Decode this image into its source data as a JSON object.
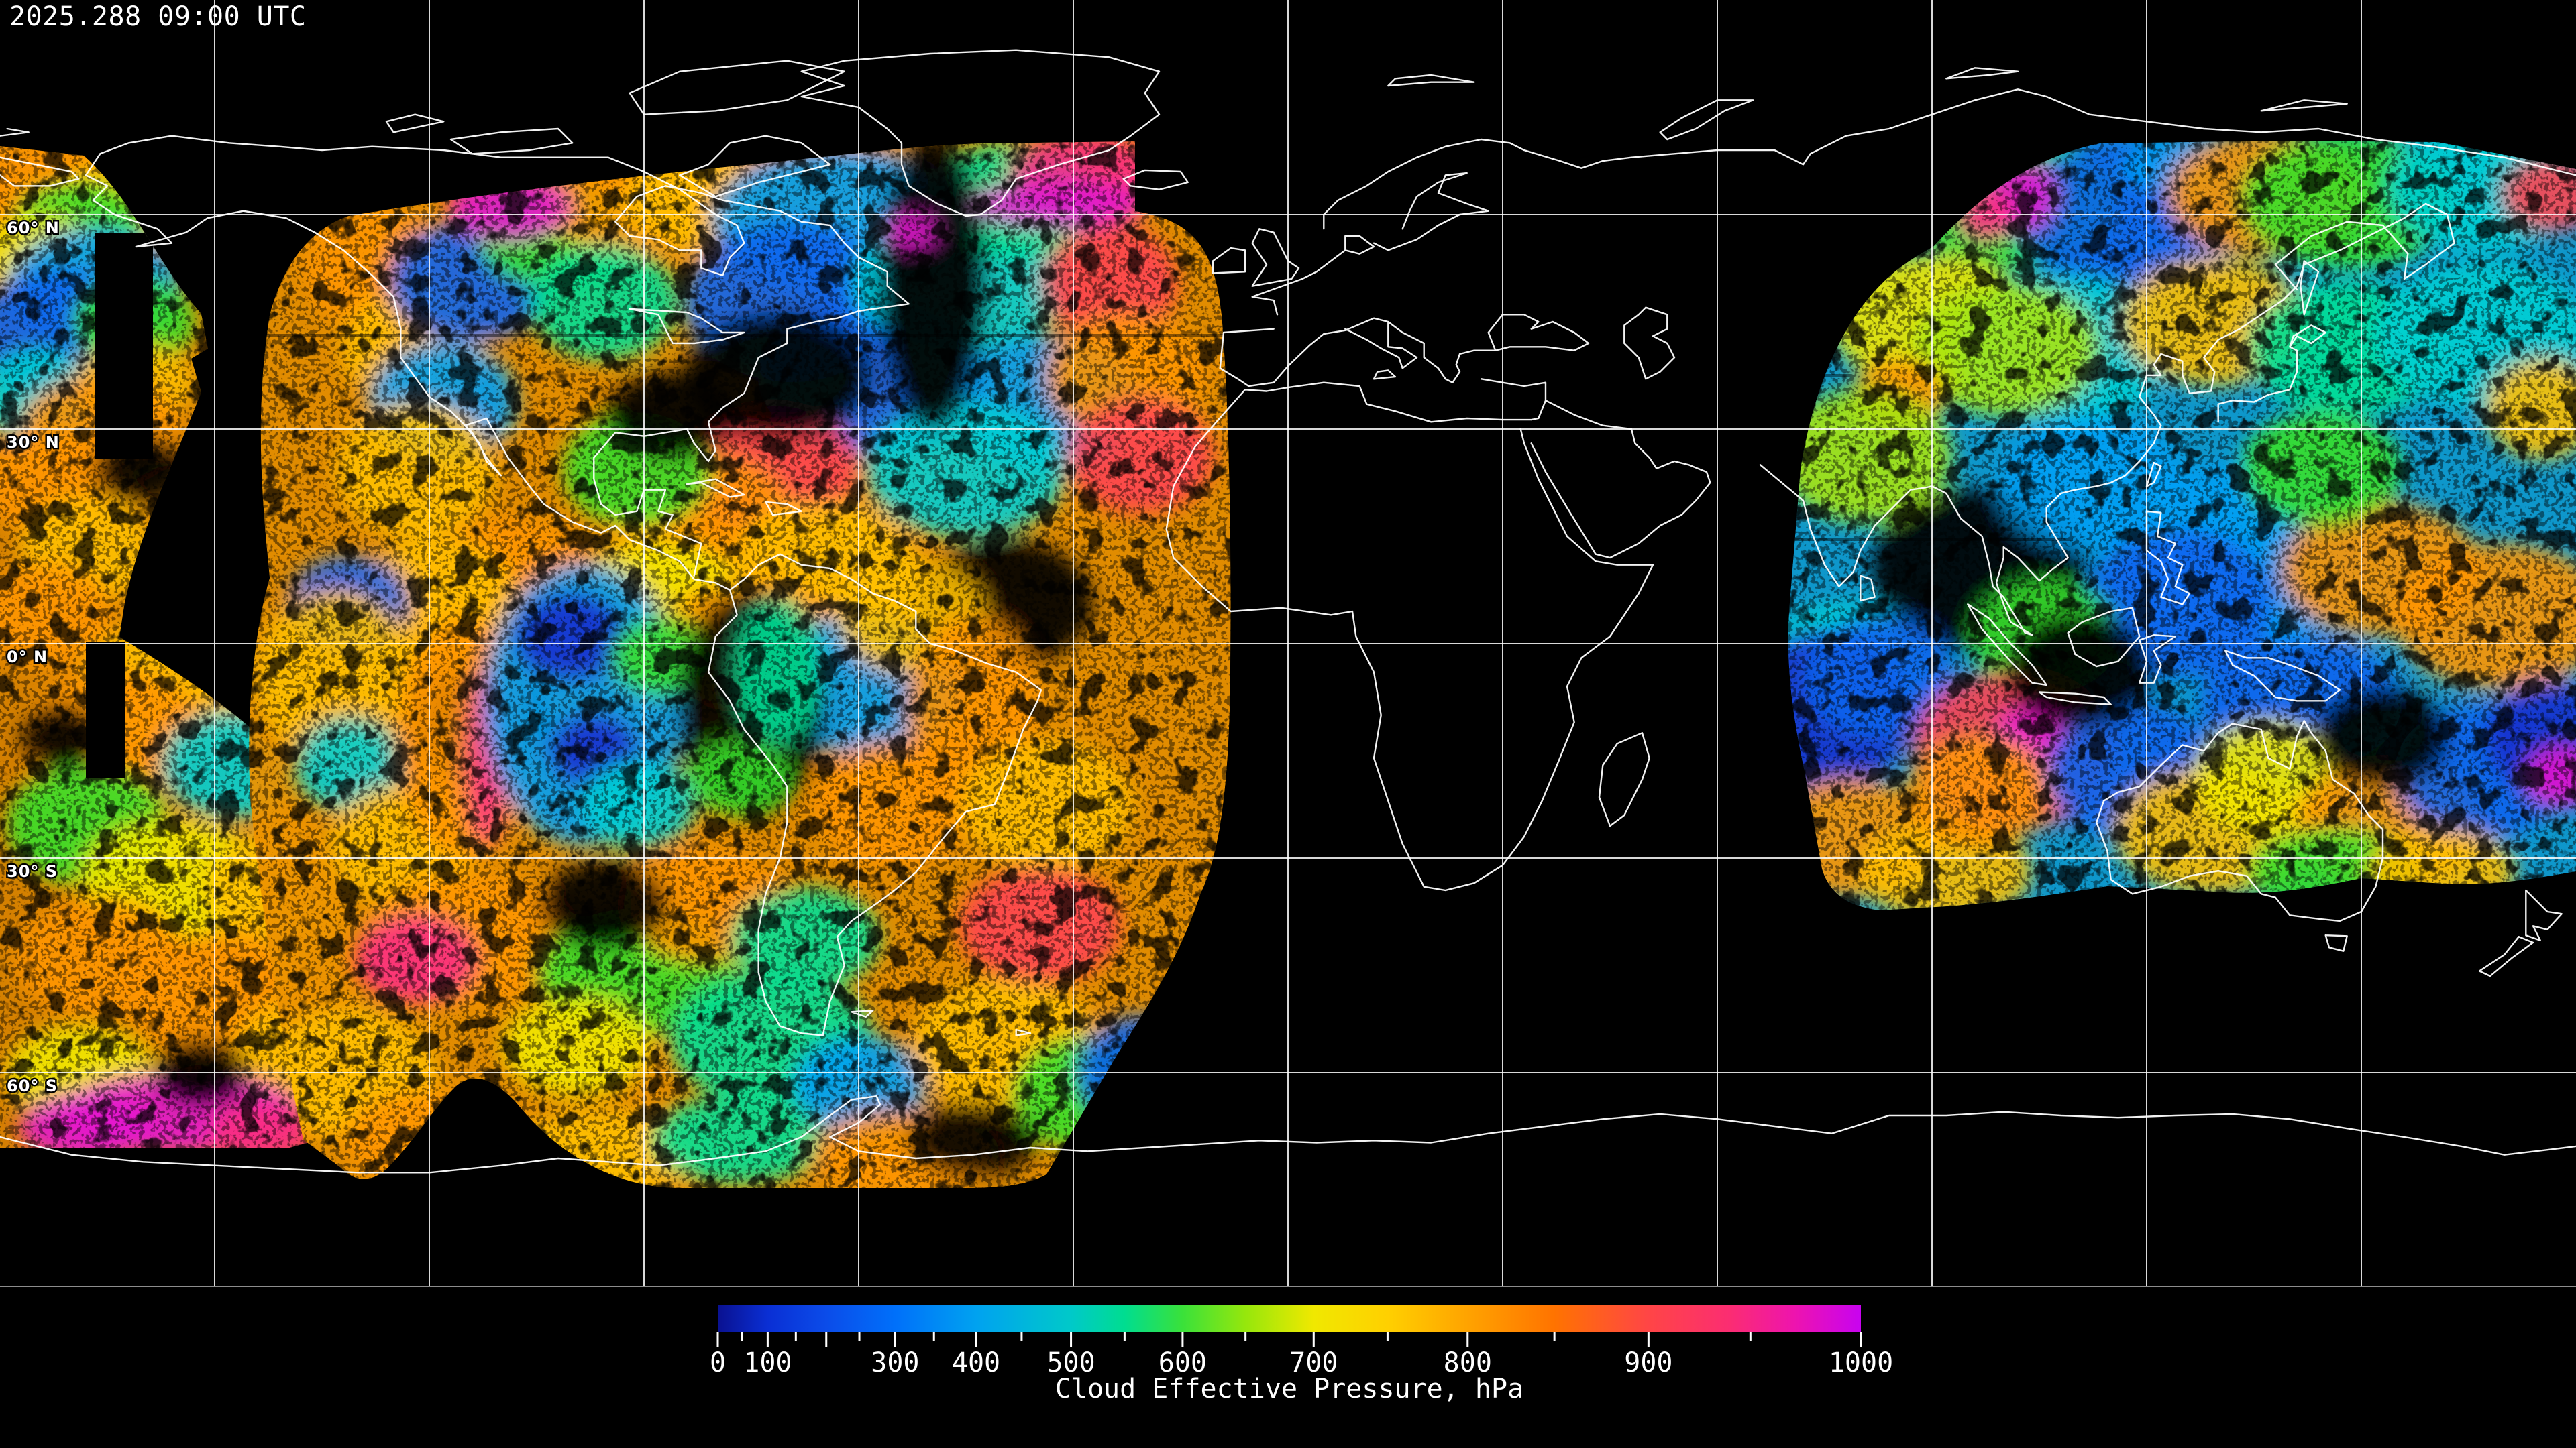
{
  "header": {
    "timestamp": "2025.288 09:00 UTC"
  },
  "map": {
    "latitude_labels": [
      "60° N",
      "30° N",
      "0° N",
      "30° S",
      "60° S"
    ],
    "graticule": {
      "latitudes_deg": [
        60,
        30,
        0,
        -30,
        -60
      ],
      "latitude_spacing_deg": 30,
      "longitude_spacing_deg": 30
    },
    "background_color": "#000000",
    "coastline_color": "#ffffff",
    "gridline_color": "#ffffff",
    "frame_color": "#8c8c8c"
  },
  "colorbar": {
    "title": "Cloud Effective Pressure, hPa",
    "units": "hPa",
    "min": 0,
    "max": 1000,
    "tick_labels": [
      "0",
      "100",
      "300",
      "400",
      "500",
      "600",
      "700",
      "800",
      "900",
      "1000"
    ],
    "tick_values": [
      0,
      100,
      300,
      400,
      500,
      600,
      700,
      800,
      900,
      1000
    ],
    "major_tick_step": 100,
    "minor_tick_step": 50,
    "scale_note": "nonlinear: position = (5^(v/1000)-1)/4",
    "scale_base": 5,
    "gradient_stops": [
      {
        "value": 0,
        "color": "#0a1190"
      },
      {
        "value": 100,
        "color": "#0a2fd4"
      },
      {
        "value": 200,
        "color": "#0b4ce9"
      },
      {
        "value": 300,
        "color": "#0070fa"
      },
      {
        "value": 400,
        "color": "#00a2f0"
      },
      {
        "value": 500,
        "color": "#00c9c9"
      },
      {
        "value": 550,
        "color": "#00dd90"
      },
      {
        "value": 600,
        "color": "#3ae13a"
      },
      {
        "value": 650,
        "color": "#96e70c"
      },
      {
        "value": 700,
        "color": "#f0e800"
      },
      {
        "value": 750,
        "color": "#ffd000"
      },
      {
        "value": 800,
        "color": "#ffa300"
      },
      {
        "value": 850,
        "color": "#ff7300"
      },
      {
        "value": 900,
        "color": "#ff4546"
      },
      {
        "value": 940,
        "color": "#fb2d72"
      },
      {
        "value": 970,
        "color": "#ee14ad"
      },
      {
        "value": 1000,
        "color": "#c803f0"
      }
    ]
  },
  "palette": {
    "deepblue": "#1430cf",
    "blue": "#0a64f0",
    "sky": "#00a0f5",
    "cyan": "#00cfd4",
    "teal": "#00e096",
    "green": "#38e02a",
    "lime": "#a8e60e",
    "yellow": "#f2e800",
    "amber": "#ffc000",
    "orange": "#ff9600",
    "redpink": "#ff4452",
    "pink": "#fb2d82",
    "magenta": "#e414cf",
    "black": "#000000"
  }
}
